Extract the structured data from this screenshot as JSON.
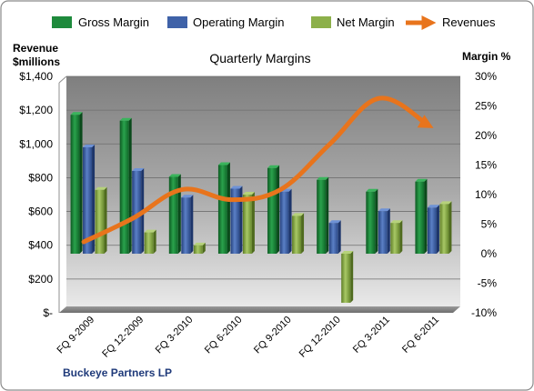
{
  "chart_data": {
    "type": "bar",
    "title": "Quarterly Margins",
    "company": "Buckeye Partners LP",
    "left_axis_label": [
      "Revenue",
      "$millions"
    ],
    "right_axis_label": "Margin %",
    "categories": [
      "FQ 9-2009",
      "FQ 12-2009",
      "FQ 3-2010",
      "FQ 6-2010",
      "FQ 9-2010",
      "FQ 12-2010",
      "FQ 3-2011",
      "FQ 6-2011"
    ],
    "left_axis": {
      "min": 0,
      "max": 1400,
      "step": 200,
      "tick_labels": [
        "$-",
        "$200",
        "$400",
        "$600",
        "$800",
        "$1,000",
        "$1,200",
        "$1,400"
      ]
    },
    "right_axis": {
      "min": -10,
      "max": 30,
      "step": 5,
      "tick_labels": [
        "-10%",
        "-5%",
        "0%",
        "5%",
        "10%",
        "15%",
        "20%",
        "25%",
        "30%"
      ]
    },
    "legend_position": "top",
    "series": [
      {
        "name": "Gross Margin",
        "kind": "bar",
        "axis": "right",
        "color": "#1e8a3c",
        "values": [
          23.5,
          22.5,
          13.0,
          15.0,
          14.5,
          12.5,
          10.5,
          12.2
        ]
      },
      {
        "name": "Operating Margin",
        "kind": "bar",
        "axis": "right",
        "color": "#3f62a8",
        "values": [
          18.0,
          14.0,
          9.5,
          11.0,
          10.5,
          5.2,
          7.2,
          7.8
        ]
      },
      {
        "name": "Net Margin",
        "kind": "bar",
        "axis": "right",
        "color": "#8cb04a",
        "values": [
          10.8,
          3.6,
          1.4,
          10.0,
          6.4,
          -8.3,
          5.2,
          8.4
        ]
      },
      {
        "name": "Revenues",
        "kind": "line",
        "axis": "left",
        "color": "#e8741c",
        "values": [
          420,
          560,
          730,
          670,
          730,
          1000,
          1270,
          1110
        ]
      }
    ]
  }
}
